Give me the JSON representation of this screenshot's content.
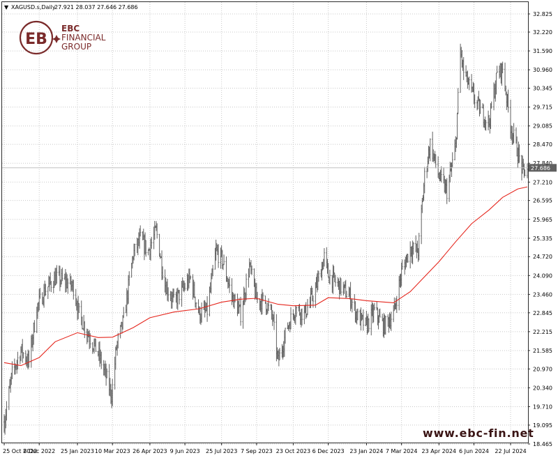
{
  "header": {
    "arrow": "▼",
    "symbol": "XAGUSD.s,Daily",
    "ohlc": "27.921 28.037 27.646 27.686"
  },
  "logo": {
    "line1": "EBC",
    "line2": "FINANCIAL",
    "line3": "GROUP",
    "mark": "EB",
    "color": "#7a2a2a"
  },
  "watermark": "www.ebc-fin.net",
  "colors": {
    "price": "#606060",
    "ma": "#e5251c",
    "current_price_box": "#606060",
    "grid": "#c8c8c8"
  },
  "chart_data": {
    "type": "line",
    "title": "XAGUSD.s,Daily",
    "y_ticks": [
      "32.825",
      "32.220",
      "31.590",
      "30.960",
      "30.345",
      "29.715",
      "29.085",
      "28.470",
      "27.840",
      "27.210",
      "26.595",
      "25.965",
      "25.335",
      "24.720",
      "24.090",
      "23.460",
      "22.845",
      "22.215",
      "21.585",
      "20.970",
      "20.340",
      "19.710",
      "19.095",
      "18.465"
    ],
    "ylim": [
      18.465,
      32.825
    ],
    "x_ticks": [
      "25 Oct 2022",
      "8 Dec 2022",
      "25 Jan 2023",
      "10 Mar 2023",
      "26 Apr 2023",
      "9 Jun 2023",
      "25 Jul 2023",
      "7 Sep 2023",
      "23 Oct 2023",
      "6 Dec 2023",
      "23 Jan 2024",
      "7 Mar 2024",
      "23 Apr 2024",
      "6 Jun 2024",
      "22 Jul 2024"
    ],
    "current_price": "27.686",
    "grid": true,
    "series": [
      {
        "style": "bars",
        "points": [
          [
            "2022-10-25",
            19.2
          ],
          [
            "2022-11-04",
            20.8
          ],
          [
            "2022-11-15",
            21.6
          ],
          [
            "2022-11-25",
            21.2
          ],
          [
            "2022-12-05",
            23.0
          ],
          [
            "2022-12-15",
            23.6
          ],
          [
            "2022-12-28",
            24.0
          ],
          [
            "2023-01-10",
            23.9
          ],
          [
            "2023-01-20",
            23.7
          ],
          [
            "2023-01-27",
            22.8
          ],
          [
            "2023-02-08",
            22.1
          ],
          [
            "2023-02-20",
            21.5
          ],
          [
            "2023-03-01",
            20.8
          ],
          [
            "2023-03-09",
            20.1
          ],
          [
            "2023-03-15",
            21.7
          ],
          [
            "2023-03-24",
            22.6
          ],
          [
            "2023-04-05",
            24.8
          ],
          [
            "2023-04-14",
            25.3
          ],
          [
            "2023-04-24",
            24.9
          ],
          [
            "2023-05-04",
            25.6
          ],
          [
            "2023-05-15",
            23.8
          ],
          [
            "2023-05-26",
            23.2
          ],
          [
            "2023-06-06",
            23.6
          ],
          [
            "2023-06-16",
            24.0
          ],
          [
            "2023-06-27",
            22.8
          ],
          [
            "2023-07-07",
            22.9
          ],
          [
            "2023-07-18",
            24.9
          ],
          [
            "2023-07-26",
            24.6
          ],
          [
            "2023-08-07",
            23.4
          ],
          [
            "2023-08-18",
            22.8
          ],
          [
            "2023-08-29",
            24.4
          ],
          [
            "2023-09-07",
            23.3
          ],
          [
            "2023-09-18",
            23.2
          ],
          [
            "2023-09-27",
            22.7
          ],
          [
            "2023-10-04",
            21.2
          ],
          [
            "2023-10-16",
            22.4
          ],
          [
            "2023-10-26",
            23.0
          ],
          [
            "2023-11-06",
            22.8
          ],
          [
            "2023-11-20",
            23.6
          ],
          [
            "2023-12-01",
            24.7
          ],
          [
            "2023-12-06",
            24.1
          ],
          [
            "2023-12-18",
            23.8
          ],
          [
            "2024-01-02",
            23.4
          ],
          [
            "2024-01-12",
            22.7
          ],
          [
            "2024-01-23",
            22.4
          ],
          [
            "2024-02-02",
            22.9
          ],
          [
            "2024-02-14",
            22.4
          ],
          [
            "2024-02-26",
            22.8
          ],
          [
            "2024-03-07",
            24.2
          ],
          [
            "2024-03-18",
            25.0
          ],
          [
            "2024-03-28",
            24.9
          ],
          [
            "2024-04-05",
            27.4
          ],
          [
            "2024-04-12",
            28.5
          ],
          [
            "2024-04-23",
            27.4
          ],
          [
            "2024-05-03",
            26.9
          ],
          [
            "2024-05-14",
            28.4
          ],
          [
            "2024-05-20",
            31.6
          ],
          [
            "2024-05-24",
            30.9
          ],
          [
            "2024-06-03",
            30.2
          ],
          [
            "2024-06-14",
            29.6
          ],
          [
            "2024-06-25",
            29.2
          ],
          [
            "2024-07-05",
            30.8
          ],
          [
            "2024-07-12",
            31.0
          ],
          [
            "2024-07-22",
            29.1
          ],
          [
            "2024-07-31",
            28.2
          ],
          [
            "2024-08-07",
            27.5
          ],
          [
            "2024-08-12",
            27.7
          ]
        ]
      },
      {
        "style": "moving-average",
        "points": [
          [
            "2022-10-25",
            21.18
          ],
          [
            "2022-11-15",
            21.08
          ],
          [
            "2022-12-08",
            21.35
          ],
          [
            "2022-12-28",
            21.88
          ],
          [
            "2023-01-25",
            22.18
          ],
          [
            "2023-02-20",
            22.02
          ],
          [
            "2023-03-10",
            22.03
          ],
          [
            "2023-04-05",
            22.35
          ],
          [
            "2023-04-26",
            22.68
          ],
          [
            "2023-05-26",
            22.87
          ],
          [
            "2023-06-27",
            22.98
          ],
          [
            "2023-07-25",
            23.2
          ],
          [
            "2023-08-18",
            23.3
          ],
          [
            "2023-09-07",
            23.33
          ],
          [
            "2023-10-04",
            23.13
          ],
          [
            "2023-10-23",
            23.08
          ],
          [
            "2023-11-20",
            23.1
          ],
          [
            "2023-12-06",
            23.35
          ],
          [
            "2024-01-02",
            23.32
          ],
          [
            "2024-01-23",
            23.25
          ],
          [
            "2024-02-26",
            23.18
          ],
          [
            "2024-03-18",
            23.55
          ],
          [
            "2024-04-05",
            24.05
          ],
          [
            "2024-04-23",
            24.55
          ],
          [
            "2024-05-14",
            25.22
          ],
          [
            "2024-06-03",
            25.82
          ],
          [
            "2024-06-25",
            26.28
          ],
          [
            "2024-07-12",
            26.7
          ],
          [
            "2024-07-31",
            26.98
          ],
          [
            "2024-08-12",
            27.05
          ]
        ]
      }
    ]
  }
}
